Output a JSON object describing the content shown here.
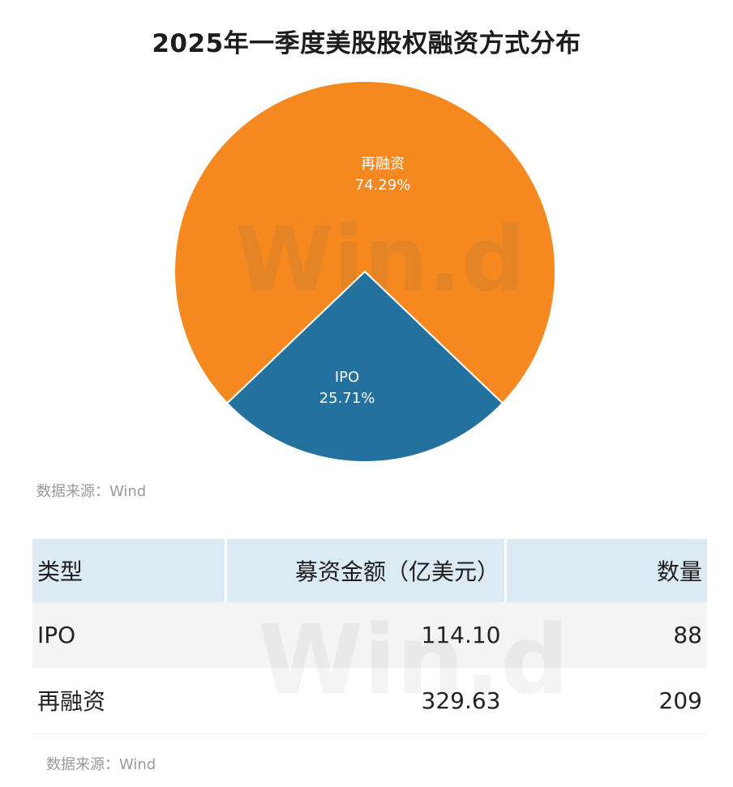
{
  "title": "2025年一季度美股股权融资方式分布",
  "watermark": "Win.d",
  "source_note": "数据来源：Wind",
  "colors": {
    "refinancing": "#f5891f",
    "ipo": "#23719e",
    "header_bg": "#dcebf3"
  },
  "chart_data": {
    "type": "pie",
    "title": "2025年一季度美股股权融资方式分布",
    "slices": [
      {
        "label": "再融资",
        "value": 74.29,
        "display": "74.29%",
        "color": "#f5891f"
      },
      {
        "label": "IPO",
        "value": 25.71,
        "display": "25.71%",
        "color": "#23719e"
      }
    ]
  },
  "table": {
    "headers": [
      "类型",
      "募资金额（亿美元）",
      "数量"
    ],
    "rows": [
      [
        "IPO",
        "114.10",
        "88"
      ],
      [
        "再融资",
        "329.63",
        "209"
      ]
    ]
  }
}
